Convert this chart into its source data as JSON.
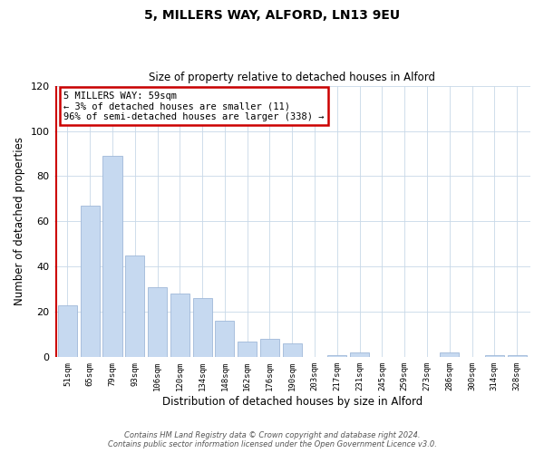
{
  "title": "5, MILLERS WAY, ALFORD, LN13 9EU",
  "subtitle": "Size of property relative to detached houses in Alford",
  "xlabel": "Distribution of detached houses by size in Alford",
  "ylabel": "Number of detached properties",
  "categories": [
    "51sqm",
    "65sqm",
    "79sqm",
    "93sqm",
    "106sqm",
    "120sqm",
    "134sqm",
    "148sqm",
    "162sqm",
    "176sqm",
    "190sqm",
    "203sqm",
    "217sqm",
    "231sqm",
    "245sqm",
    "259sqm",
    "273sqm",
    "286sqm",
    "300sqm",
    "314sqm",
    "328sqm"
  ],
  "values": [
    23,
    67,
    89,
    45,
    31,
    28,
    26,
    16,
    7,
    8,
    6,
    0,
    1,
    2,
    0,
    0,
    0,
    2,
    0,
    1,
    1
  ],
  "bar_color": "#c6d9f0",
  "bar_edge_color": "#a0b8d8",
  "ylim": [
    0,
    120
  ],
  "yticks": [
    0,
    20,
    40,
    60,
    80,
    100,
    120
  ],
  "vline_color": "#cc0000",
  "annotation_line1": "5 MILLERS WAY: 59sqm",
  "annotation_line2": "← 3% of detached houses are smaller (11)",
  "annotation_line3": "96% of semi-detached houses are larger (338) →",
  "annotation_box_color": "#cc0000",
  "footer_line1": "Contains HM Land Registry data © Crown copyright and database right 2024.",
  "footer_line2": "Contains public sector information licensed under the Open Government Licence v3.0.",
  "background_color": "#ffffff",
  "grid_color": "#c8d8e8"
}
